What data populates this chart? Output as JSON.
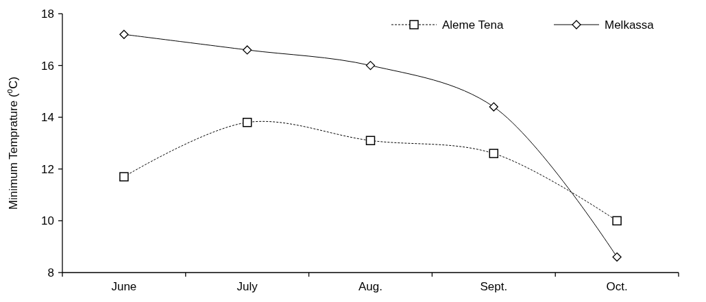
{
  "chart_data": {
    "type": "line",
    "ylabel": "Minimum Temprature ($^{o}$C)",
    "categories": [
      "June",
      "July",
      "Aug.",
      "Sept.",
      "Oct."
    ],
    "series": [
      {
        "name": "Aleme Tena",
        "color": "#000000",
        "values": [
          11.7,
          13.8,
          13.1,
          12.6,
          10.0
        ],
        "marker": "square",
        "line_style": "dashed"
      },
      {
        "name": "Melkassa",
        "color": "#000000",
        "values": [
          17.2,
          16.6,
          16.0,
          14.4,
          8.6
        ],
        "marker": "diamond",
        "line_style": "solid"
      }
    ],
    "ylim": [
      8,
      18
    ],
    "yticks": [
      8,
      10,
      12,
      14,
      16,
      18
    ],
    "grid": false,
    "legend": "top right"
  }
}
